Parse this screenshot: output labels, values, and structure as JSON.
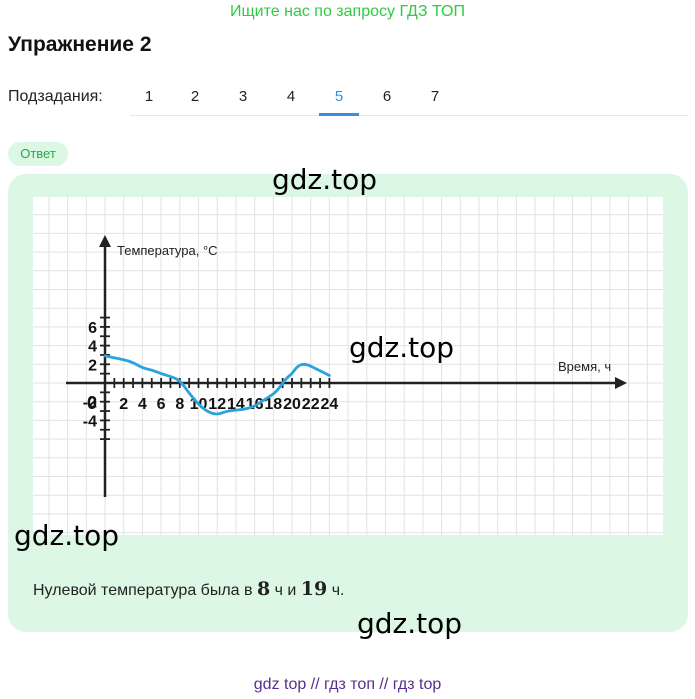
{
  "banner": {
    "text": "Ищите нас по запросу ГДЗ ТОП"
  },
  "title": "Упражнение 2",
  "subtasks": {
    "label": "Подзадания:",
    "tabs": [
      "1",
      "2",
      "3",
      "4",
      "5",
      "6",
      "7"
    ],
    "active_index": 4
  },
  "answer_badge": "Ответ",
  "watermarks": [
    "gdz.top",
    "gdz.top",
    "gdz.top",
    "gdz.top"
  ],
  "chart_data": {
    "type": "line",
    "xlabel": "Время, ч",
    "ylabel": "Температура, °C",
    "x_ticks": [
      "2",
      "4",
      "6",
      "8",
      "10",
      "12",
      "14",
      "16",
      "18",
      "20",
      "22",
      "24"
    ],
    "y_ticks": [
      "6",
      "4",
      "2",
      "-2",
      "-4"
    ],
    "origin_label": "0",
    "xlim": [
      0,
      24
    ],
    "ylim": [
      -6,
      7
    ],
    "grid": true,
    "series": [
      {
        "color": "#2aa3dd",
        "x": [
          0,
          1,
          2,
          3,
          4,
          5,
          6,
          7,
          8,
          9,
          10,
          11,
          12,
          13,
          14,
          15,
          16,
          17,
          18,
          18.5,
          19,
          19.5,
          20,
          20.5,
          21,
          21.5,
          22,
          23,
          24
        ],
        "y": [
          2.9,
          2.7,
          2.5,
          2.2,
          1.6,
          1.4,
          1.0,
          0.7,
          0.3,
          -1.1,
          -2.3,
          -3.1,
          -3.4,
          -3.0,
          -2.9,
          -2.8,
          -2.5,
          -1.8,
          -1.2,
          -0.7,
          0.0,
          0.6,
          1.0,
          1.7,
          2.0,
          2.0,
          1.8,
          1.3,
          0.8
        ]
      }
    ]
  },
  "answer": {
    "prefix": "Нулевой температура была в ",
    "v1": "8",
    "mid1": " ч и ",
    "v2": "19",
    "suffix": " ч."
  },
  "footer": "gdz top  //  гдз топ  //  гдз top"
}
